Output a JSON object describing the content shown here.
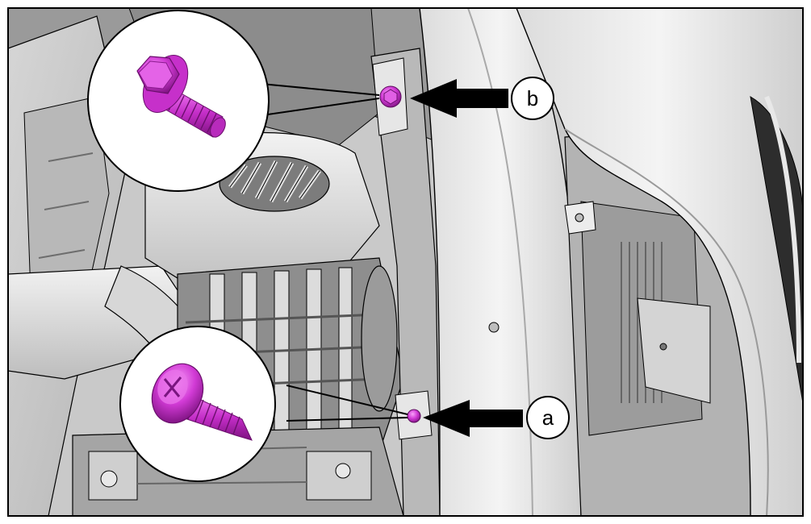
{
  "figure": {
    "kind": "technical service illustration",
    "colors": {
      "fastener": "#d23bd6",
      "fastener_dark": "#8a1a8e",
      "fastener_light": "#f07bf2",
      "panel_light": "#e3e3e3",
      "panel_mid": "#c4c4c4",
      "panel_dark": "#8a8a8a",
      "line": "#000000",
      "background": "#ffffff"
    }
  },
  "callouts": [
    {
      "id": "b",
      "label": "b",
      "icon": "arrow-left-icon",
      "fastener": "flange-hex-bolt"
    },
    {
      "id": "a",
      "label": "a",
      "icon": "arrow-left-icon",
      "fastener": "phillips-truss-head-screw"
    }
  ],
  "insets": [
    {
      "name": "bolt-detail",
      "depicts": "flange-hex-bolt"
    },
    {
      "name": "screw-detail",
      "depicts": "phillips-truss-head-screw"
    }
  ]
}
